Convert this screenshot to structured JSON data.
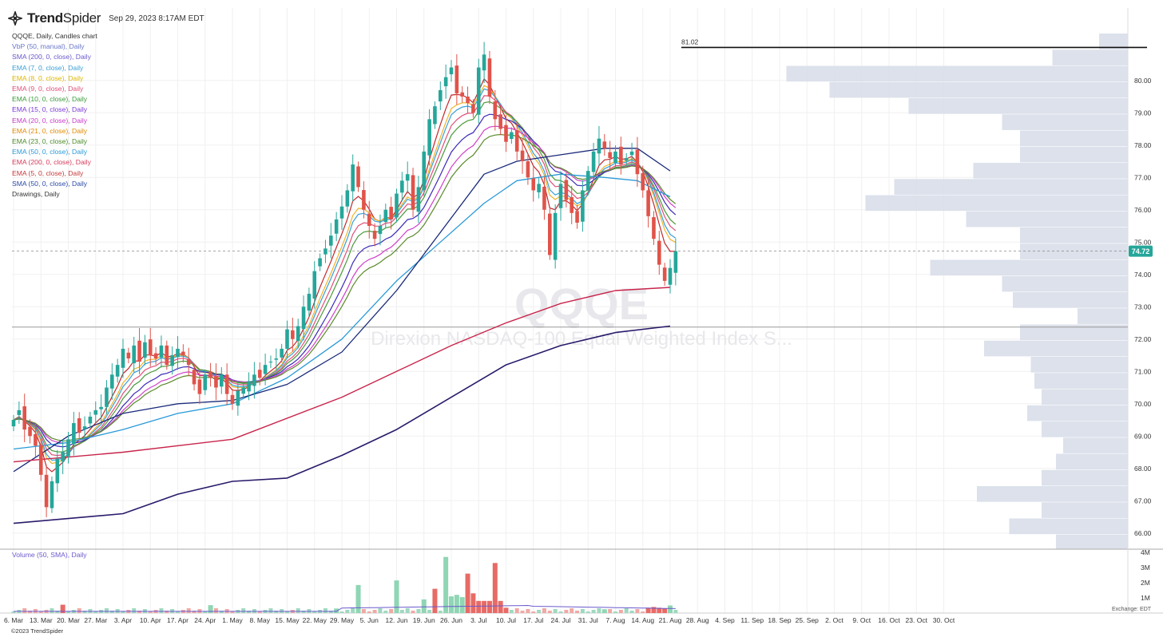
{
  "app": {
    "brand_a": "Trend",
    "brand_b": "Spider",
    "datetime": "Sep 29, 2023 8:17AM EDT",
    "copyright": "©2023 TrendSpider",
    "exchange": "Exchange: EDT"
  },
  "legend": [
    {
      "text": "QQQE, Daily, Candles chart",
      "color": "#333333"
    },
    {
      "text": "VbP (50, manual), Daily",
      "color": "#6a78c8"
    },
    {
      "text": "SMA (200, 0, close), Daily",
      "color": "#6a5acd"
    },
    {
      "text": "EMA (7, 0, close), Daily",
      "color": "#3aa0d8"
    },
    {
      "text": "EMA (8, 0, close), Daily",
      "color": "#e0b800"
    },
    {
      "text": "EMA (9, 0, close), Daily",
      "color": "#e0507a"
    },
    {
      "text": "EMA (10, 0, close), Daily",
      "color": "#3a9a3a"
    },
    {
      "text": "EMA (15, 0, close), Daily",
      "color": "#7a3ad8"
    },
    {
      "text": "EMA (20, 0, close), Daily",
      "color": "#c83ac8"
    },
    {
      "text": "EMA (21, 0, close), Daily",
      "color": "#e08a00"
    },
    {
      "text": "EMA (23, 0, close), Daily",
      "color": "#4a8a2a"
    },
    {
      "text": "EMA (50, 0, close), Daily",
      "color": "#2a9ad8"
    },
    {
      "text": "EMA (200, 0, close), Daily",
      "color": "#d83a5a"
    },
    {
      "text": "EMA (5, 0, close), Daily",
      "color": "#c83a3a"
    },
    {
      "text": "SMA (50, 0, close), Daily",
      "color": "#2a4aa8"
    },
    {
      "text": "Drawings, Daily",
      "color": "#333333"
    }
  ],
  "volume_label": "Volume (50, SMA), Daily",
  "chart_data": {
    "type": "candlestick",
    "symbol": "QQQE",
    "watermark_symbol": "QQQE",
    "watermark_name": "Direxion NASDAQ-100 Equal Weighted Index S...",
    "ylim": [
      65.5,
      81.5
    ],
    "y_ticks": [
      "66.00",
      "67.00",
      "68.00",
      "69.00",
      "70.00",
      "71.00",
      "72.00",
      "73.00",
      "74.00",
      "75.00",
      "76.00",
      "77.00",
      "78.00",
      "79.00",
      "80.00"
    ],
    "x_ticks": [
      "6. Mar",
      "13. Mar",
      "20. Mar",
      "27. Mar",
      "3. Apr",
      "10. Apr",
      "17. Apr",
      "24. Apr",
      "1. May",
      "8. May",
      "15. May",
      "22. May",
      "29. May",
      "5. Jun",
      "12. Jun",
      "19. Jun",
      "26. Jun",
      "3. Jul",
      "10. Jul",
      "17. Jul",
      "24. Jul",
      "31. Jul",
      "7. Aug",
      "14. Aug",
      "21. Aug",
      "28. Aug",
      "4. Sep",
      "11. Sep",
      "18. Sep",
      "25. Sep",
      "2. Oct",
      "9. Oct",
      "16. Oct",
      "23. Oct",
      "30. Oct"
    ],
    "last_price": "74.72",
    "last_price_value": 74.72,
    "resistance_label": "81.02",
    "resistance_value": 81.02,
    "support_value": 72.37,
    "closes": [
      69.5,
      69.8,
      69.2,
      69.0,
      68.7,
      67.8,
      66.8,
      67.6,
      68.3,
      68.5,
      68.9,
      69.4,
      69.1,
      69.3,
      69.6,
      69.8,
      69.9,
      70.5,
      70.9,
      71.2,
      71.7,
      71.4,
      71.8,
      71.3,
      71.9,
      71.5,
      71.4,
      71.8,
      71.2,
      71.5,
      71.7,
      71.5,
      71.2,
      70.6,
      70.3,
      70.9,
      70.8,
      70.5,
      70.9,
      70.3,
      70.0,
      70.4,
      70.5,
      70.7,
      70.9,
      70.8,
      71.2,
      71.3,
      71.4,
      71.7,
      72.3,
      72.0,
      72.4,
      73.0,
      73.4,
      74.1,
      74.5,
      74.8,
      75.2,
      75.7,
      76.1,
      76.6,
      77.4,
      76.7,
      76.0,
      75.5,
      75.1,
      75.5,
      76.0,
      75.7,
      76.5,
      76.9,
      77.1,
      76.0,
      76.7,
      77.8,
      78.8,
      79.2,
      79.7,
      80.1,
      80.4,
      79.6,
      79.5,
      79.3,
      79.0,
      80.4,
      80.8,
      79.5,
      78.8,
      78.5,
      78.1,
      78.4,
      77.8,
      77.5,
      77.0,
      76.6,
      76.8,
      76.0,
      74.6,
      75.9,
      76.8,
      76.3,
      75.9,
      75.6,
      76.6,
      77.2,
      77.8,
      78.2,
      77.9,
      77.6,
      77.8,
      77.4,
      77.6,
      77.8,
      77.1,
      76.6,
      75.8,
      75.1,
      74.3,
      73.8,
      74.2,
      74.72
    ],
    "volume_axis": [
      "1M",
      "2M",
      "3M",
      "4M"
    ],
    "volume_max": 4000000,
    "volume": [
      {
        "i": 9,
        "v": 550000,
        "up": false
      },
      {
        "i": 36,
        "v": 520000,
        "up": true
      },
      {
        "i": 59,
        "v": 300000,
        "up": true
      },
      {
        "i": 63,
        "v": 1850000,
        "up": true
      },
      {
        "i": 70,
        "v": 2150000,
        "up": true
      },
      {
        "i": 75,
        "v": 900000,
        "up": true
      },
      {
        "i": 77,
        "v": 1600000,
        "up": false
      },
      {
        "i": 79,
        "v": 3700000,
        "up": true
      },
      {
        "i": 80,
        "v": 1100000,
        "up": true
      },
      {
        "i": 81,
        "v": 1200000,
        "up": true
      },
      {
        "i": 82,
        "v": 1050000,
        "up": true
      },
      {
        "i": 83,
        "v": 2600000,
        "up": false
      },
      {
        "i": 84,
        "v": 1300000,
        "up": false
      },
      {
        "i": 85,
        "v": 800000,
        "up": false
      },
      {
        "i": 86,
        "v": 800000,
        "up": false
      },
      {
        "i": 87,
        "v": 800000,
        "up": false
      },
      {
        "i": 88,
        "v": 3300000,
        "up": false
      },
      {
        "i": 89,
        "v": 800000,
        "up": false
      },
      {
        "i": 90,
        "v": 350000,
        "up": false
      },
      {
        "i": 108,
        "v": 250000,
        "up": true
      },
      {
        "i": 116,
        "v": 350000,
        "up": false
      },
      {
        "i": 117,
        "v": 400000,
        "up": false
      },
      {
        "i": 118,
        "v": 350000,
        "up": false
      },
      {
        "i": 119,
        "v": 300000,
        "up": false
      },
      {
        "i": 120,
        "v": 500000,
        "up": true
      }
    ],
    "volume_profile": [
      {
        "low": 65.5,
        "high": 65.95,
        "size": 0.2
      },
      {
        "low": 65.95,
        "high": 66.45,
        "size": 0.33
      },
      {
        "low": 66.45,
        "high": 66.95,
        "size": 0.24
      },
      {
        "low": 66.95,
        "high": 67.45,
        "size": 0.42
      },
      {
        "low": 67.45,
        "high": 67.95,
        "size": 0.24
      },
      {
        "low": 67.95,
        "high": 68.45,
        "size": 0.2
      },
      {
        "low": 68.45,
        "high": 68.95,
        "size": 0.18
      },
      {
        "low": 68.95,
        "high": 69.45,
        "size": 0.24
      },
      {
        "low": 69.45,
        "high": 69.95,
        "size": 0.28
      },
      {
        "low": 69.95,
        "high": 70.45,
        "size": 0.24
      },
      {
        "low": 70.45,
        "high": 70.95,
        "size": 0.26
      },
      {
        "low": 70.95,
        "high": 71.45,
        "size": 0.27
      },
      {
        "low": 71.45,
        "high": 71.95,
        "size": 0.4
      },
      {
        "low": 71.95,
        "high": 72.45,
        "size": 0.3
      },
      {
        "low": 72.45,
        "high": 72.95,
        "size": 0.14
      },
      {
        "low": 72.95,
        "high": 73.45,
        "size": 0.32
      },
      {
        "low": 73.45,
        "high": 73.95,
        "size": 0.35
      },
      {
        "low": 73.95,
        "high": 74.45,
        "size": 0.55
      },
      {
        "low": 74.45,
        "high": 74.95,
        "size": 0.3
      },
      {
        "low": 74.95,
        "high": 75.45,
        "size": 0.3
      },
      {
        "low": 75.45,
        "high": 75.95,
        "size": 0.45
      },
      {
        "low": 75.95,
        "high": 76.45,
        "size": 0.73
      },
      {
        "low": 76.45,
        "high": 76.95,
        "size": 0.65
      },
      {
        "low": 76.95,
        "high": 77.45,
        "size": 0.43
      },
      {
        "low": 77.45,
        "high": 77.95,
        "size": 0.3
      },
      {
        "low": 77.95,
        "high": 78.45,
        "size": 0.3
      },
      {
        "low": 78.45,
        "high": 78.95,
        "size": 0.35
      },
      {
        "low": 78.95,
        "high": 79.45,
        "size": 0.61
      },
      {
        "low": 79.45,
        "high": 79.95,
        "size": 0.83
      },
      {
        "low": 79.95,
        "high": 80.45,
        "size": 0.95
      },
      {
        "low": 80.45,
        "high": 80.95,
        "size": 0.21
      },
      {
        "low": 80.95,
        "high": 81.45,
        "size": 0.08
      }
    ],
    "ma_series": [
      {
        "color": "#c0282d",
        "span": 5
      },
      {
        "color": "#f0b429",
        "span": 7
      },
      {
        "color": "#3aa0d8",
        "span": 8
      },
      {
        "color": "#e0507a",
        "span": 10
      },
      {
        "color": "#4a9a3a",
        "span": 12
      },
      {
        "color": "#3a2ab8",
        "span": 16
      },
      {
        "color": "#d040c8",
        "span": 20
      },
      {
        "color": "#5a8a2a",
        "span": 23
      }
    ],
    "ema50": [
      [
        0,
        68.6
      ],
      [
        10,
        68.8
      ],
      [
        20,
        69.2
      ],
      [
        30,
        69.7
      ],
      [
        40,
        70.0
      ],
      [
        50,
        70.8
      ],
      [
        60,
        72.0
      ],
      [
        70,
        73.8
      ],
      [
        78,
        75.0
      ],
      [
        86,
        76.2
      ],
      [
        92,
        76.9
      ],
      [
        100,
        77.1
      ],
      [
        108,
        77.0
      ],
      [
        114,
        76.9
      ],
      [
        120,
        76.4
      ]
    ],
    "sma50": [
      [
        0,
        67.9
      ],
      [
        10,
        69.0
      ],
      [
        20,
        69.7
      ],
      [
        30,
        70.0
      ],
      [
        40,
        70.1
      ],
      [
        50,
        70.6
      ],
      [
        60,
        71.6
      ],
      [
        70,
        73.5
      ],
      [
        78,
        75.3
      ],
      [
        86,
        77.1
      ],
      [
        92,
        77.5
      ],
      [
        100,
        77.7
      ],
      [
        108,
        77.9
      ],
      [
        114,
        77.9
      ],
      [
        120,
        77.2
      ]
    ],
    "ema200": [
      [
        0,
        68.2
      ],
      [
        20,
        68.5
      ],
      [
        40,
        68.9
      ],
      [
        60,
        70.2
      ],
      [
        70,
        71.0
      ],
      [
        80,
        71.8
      ],
      [
        90,
        72.5
      ],
      [
        100,
        73.1
      ],
      [
        110,
        73.5
      ],
      [
        120,
        73.6
      ]
    ],
    "sma200": [
      [
        0,
        66.3
      ],
      [
        20,
        66.6
      ],
      [
        30,
        67.2
      ],
      [
        40,
        67.6
      ],
      [
        50,
        67.7
      ],
      [
        60,
        68.4
      ],
      [
        70,
        69.2
      ],
      [
        80,
        70.2
      ],
      [
        90,
        71.2
      ],
      [
        100,
        71.8
      ],
      [
        110,
        72.2
      ],
      [
        120,
        72.4
      ]
    ]
  }
}
